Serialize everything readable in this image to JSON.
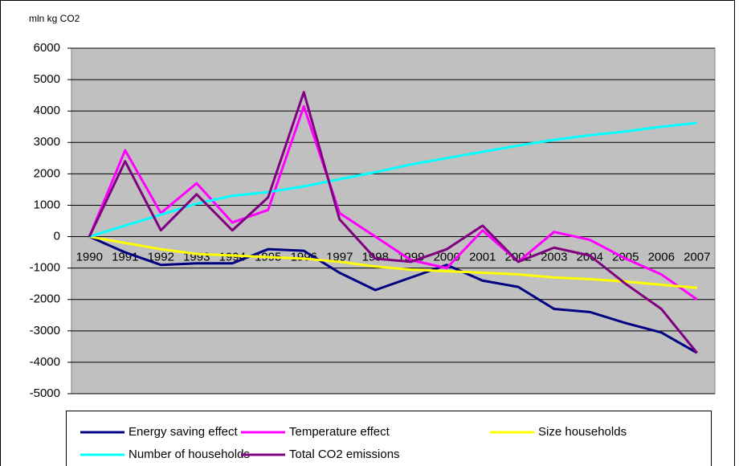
{
  "chart_data": {
    "type": "line",
    "y_label": "mln kg CO2",
    "categories": [
      "1990",
      "1991",
      "1992",
      "1993",
      "1994",
      "1995",
      "1996",
      "1997",
      "1998",
      "1999",
      "2000",
      "2001",
      "2002",
      "2003",
      "2004",
      "2005",
      "2006",
      "2007"
    ],
    "series": [
      {
        "name": "Energy saving effect",
        "color": "#000080",
        "values": [
          0,
          -500,
          -900,
          -850,
          -850,
          -400,
          -450,
          -1150,
          -1700,
          -1300,
          -900,
          -1400,
          -1600,
          -2300,
          -2400,
          -2750,
          -3050,
          -3700
        ]
      },
      {
        "name": "Temperature effect",
        "color": "#ff00ff",
        "values": [
          0,
          2750,
          750,
          1700,
          450,
          850,
          4150,
          750,
          0,
          -750,
          -1000,
          200,
          -800,
          150,
          -100,
          -700,
          -1200,
          -2000
        ]
      },
      {
        "name": "Size households",
        "color": "#ffff00",
        "values": [
          0,
          -200,
          -400,
          -550,
          -600,
          -650,
          -700,
          -800,
          -950,
          -1050,
          -1100,
          -1150,
          -1200,
          -1300,
          -1350,
          -1430,
          -1530,
          -1630
        ]
      },
      {
        "name": "Number of households",
        "color": "#00ffff",
        "values": [
          0,
          350,
          700,
          1050,
          1300,
          1420,
          1600,
          1830,
          2050,
          2300,
          2500,
          2700,
          2900,
          3080,
          3230,
          3350,
          3500,
          3620
        ]
      },
      {
        "name": "Total CO2 emissions",
        "color": "#800080",
        "values": [
          0,
          2400,
          200,
          1350,
          200,
          1250,
          4600,
          550,
          -700,
          -800,
          -400,
          350,
          -800,
          -350,
          -600,
          -1500,
          -2300,
          -3700
        ]
      }
    ],
    "ylim": [
      -5000,
      6000
    ],
    "yticks": [
      -5000,
      -4000,
      -3000,
      -2000,
      -1000,
      0,
      1000,
      2000,
      3000,
      4000,
      5000,
      6000
    ],
    "grid": true,
    "legend": "bottom"
  }
}
